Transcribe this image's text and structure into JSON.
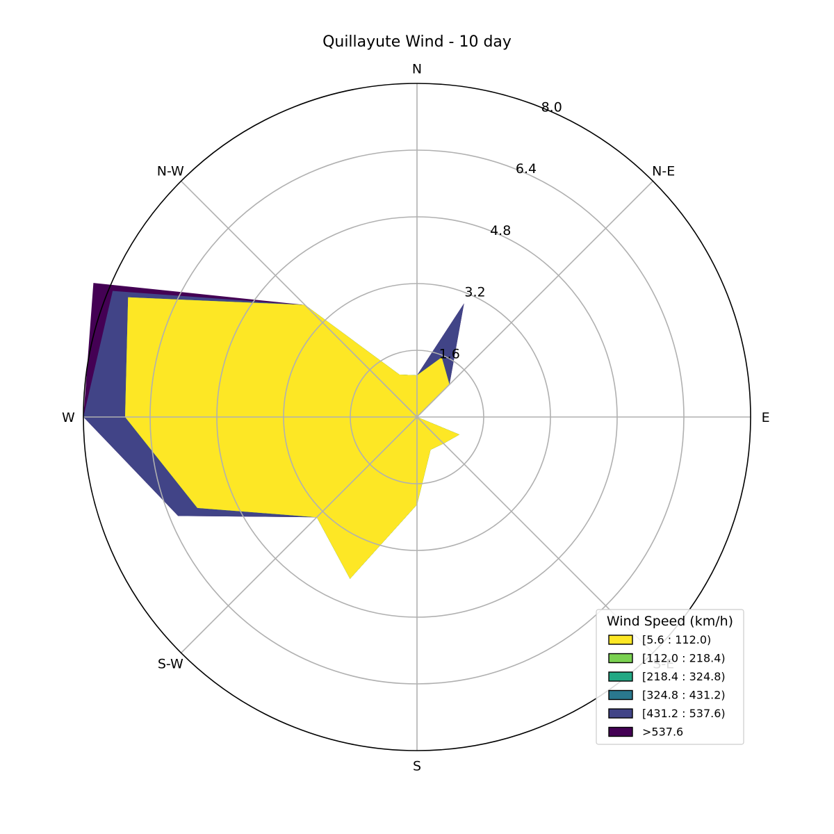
{
  "chart_data": {
    "type": "windrose",
    "title": "Quillayute Wind - 10 day",
    "directions": [
      "N",
      "N-E",
      "E",
      "S-E",
      "S",
      "S-W",
      "W",
      "N-W"
    ],
    "direction_angles_deg": [
      0,
      45,
      90,
      135,
      180,
      225,
      270,
      315
    ],
    "radial_ticks": [
      "1.6",
      "3.2",
      "4.8",
      "6.4",
      "8.0"
    ],
    "radial_tick_values": [
      1.6,
      3.2,
      4.8,
      6.4,
      8.0
    ],
    "rmax": 8.0,
    "grid": true,
    "legend_title": "Wind Speed (km/h)",
    "legend_position": "lower-right",
    "bins": [
      {
        "label": "[5.6 : 112.0)",
        "color": "#fde725"
      },
      {
        "label": "[112.0 : 218.4)",
        "color": "#7ad151"
      },
      {
        "label": "[218.4 : 324.8)",
        "color": "#22a884"
      },
      {
        "label": "[324.8 : 431.2)",
        "color": "#2a788e"
      },
      {
        "label": "[431.2 : 537.6)",
        "color": "#414487"
      },
      {
        "label": ">537.6",
        "color": "#440154"
      }
    ],
    "series_angles_deg": [
      0,
      22.5,
      45,
      67.5,
      90,
      112.5,
      135,
      157.5,
      180,
      202.5,
      225,
      247.5,
      270,
      292.5,
      315,
      337.5
    ],
    "cumulative_frequency": [
      {
        "bin": "[5.6 : 112.0)",
        "values": [
          1.0,
          1.55,
          1.1,
          0,
          0,
          1.1,
          0.9,
          0.85,
          2.1,
          4.2,
          3.4,
          5.7,
          7.0,
          7.5,
          3.8,
          1.1
        ]
      },
      {
        "bin": "[112.0 : 218.4)",
        "values": [
          1.0,
          1.55,
          1.1,
          0,
          0,
          1.1,
          0.9,
          0.85,
          2.1,
          4.2,
          3.4,
          5.7,
          7.0,
          7.5,
          3.8,
          1.1
        ]
      },
      {
        "bin": "[218.4 : 324.8)",
        "values": [
          1.0,
          1.55,
          1.1,
          0,
          0,
          1.1,
          0.9,
          0.85,
          2.1,
          4.2,
          3.4,
          5.7,
          7.0,
          7.5,
          3.8,
          1.1
        ]
      },
      {
        "bin": "[324.8 : 431.2)",
        "values": [
          1.0,
          1.55,
          1.1,
          0,
          0,
          1.1,
          0.9,
          0.85,
          2.1,
          4.2,
          3.4,
          5.7,
          7.0,
          7.5,
          3.8,
          1.1
        ]
      },
      {
        "bin": "[431.2 : 537.6)",
        "values": [
          1.0,
          2.95,
          1.1,
          0,
          0,
          1.1,
          0.9,
          0.85,
          2.1,
          4.2,
          3.4,
          6.2,
          8.0,
          7.9,
          3.8,
          1.1
        ]
      },
      {
        "bin": ">537.6",
        "values": [
          1.0,
          2.95,
          1.1,
          0,
          0,
          1.1,
          0.9,
          0.85,
          2.1,
          4.2,
          3.4,
          6.2,
          8.0,
          8.4,
          3.8,
          1.1
        ]
      }
    ]
  }
}
